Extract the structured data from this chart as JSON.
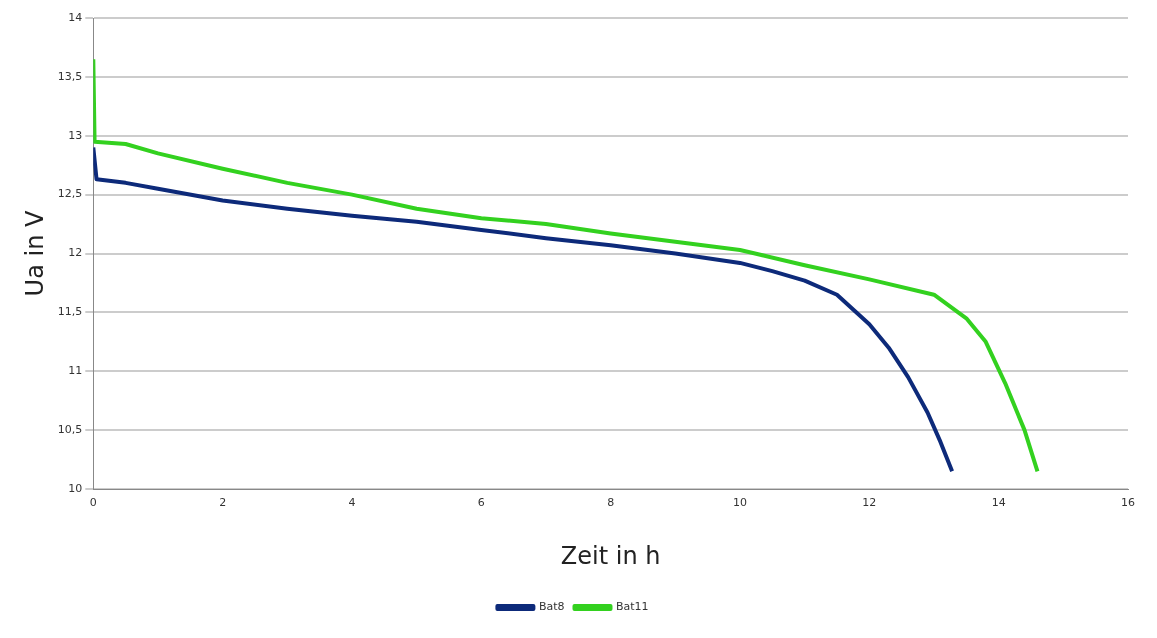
{
  "chart_data": {
    "type": "line",
    "xlabel": "Zeit in h",
    "ylabel": "Ua in V",
    "xlim": [
      0,
      16
    ],
    "xticks": [
      0,
      2,
      4,
      6,
      8,
      10,
      12,
      14,
      16
    ],
    "ylim": [
      10,
      14
    ],
    "yticks": [
      {
        "value": 10,
        "label": "10"
      },
      {
        "value": 10.5,
        "label": "10,5"
      },
      {
        "value": 11,
        "label": "11"
      },
      {
        "value": 11.5,
        "label": "11,5"
      },
      {
        "value": 12,
        "label": "12"
      },
      {
        "value": 12.5,
        "label": "12,5"
      },
      {
        "value": 13,
        "label": "13"
      },
      {
        "value": 13.5,
        "label": "13,5"
      },
      {
        "value": 14,
        "label": "14"
      }
    ],
    "grid": "y",
    "legend": "bottom",
    "marker": "none",
    "line_style": "solid",
    "series": [
      {
        "name": "Bat8",
        "color": "#0d2a7a",
        "x": [
          0,
          0.05,
          0.5,
          1,
          2,
          3,
          4,
          5,
          6,
          7,
          8,
          9,
          10,
          10.5,
          11,
          11.5,
          12,
          12.3,
          12.6,
          12.9,
          13.1,
          13.28
        ],
        "values": [
          12.9,
          12.63,
          12.6,
          12.55,
          12.45,
          12.38,
          12.32,
          12.27,
          12.2,
          12.13,
          12.07,
          12.0,
          11.92,
          11.85,
          11.77,
          11.65,
          11.4,
          11.2,
          10.95,
          10.65,
          10.4,
          10.15
        ]
      },
      {
        "name": "Bat11",
        "color": "#33d11f",
        "x": [
          0,
          0.02,
          0.5,
          1,
          2,
          3,
          4,
          5,
          6,
          7,
          8,
          9,
          10,
          11,
          12,
          13,
          13.5,
          13.8,
          14.1,
          14.4,
          14.6
        ],
        "values": [
          13.65,
          12.95,
          12.93,
          12.85,
          12.72,
          12.6,
          12.5,
          12.38,
          12.3,
          12.25,
          12.17,
          12.1,
          12.03,
          11.9,
          11.78,
          11.65,
          11.45,
          11.25,
          10.9,
          10.5,
          10.15
        ]
      }
    ]
  }
}
